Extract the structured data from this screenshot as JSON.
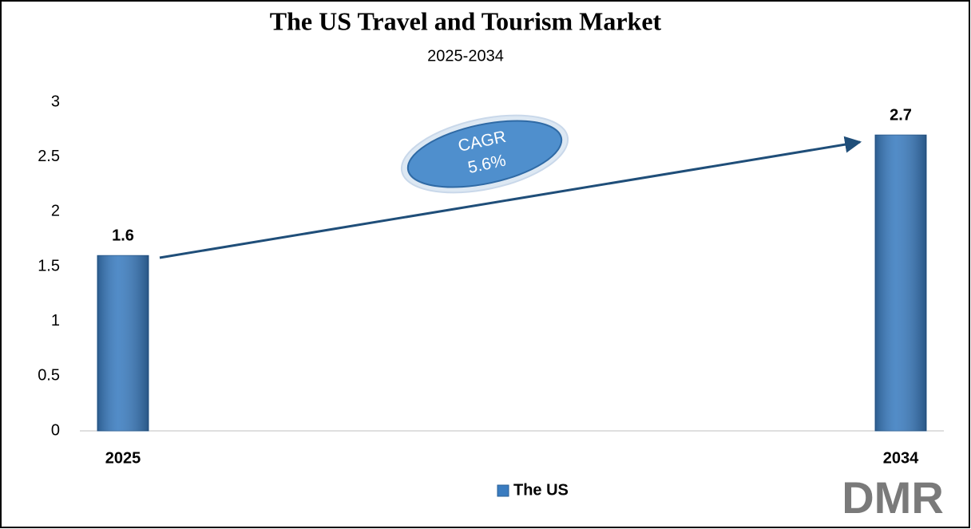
{
  "chart_data": {
    "type": "bar",
    "title": "The US Travel and Tourism Market",
    "subtitle": "2025-2034",
    "categories": [
      "2025",
      "2034"
    ],
    "series": [
      {
        "name": "The US",
        "color": "#3a7cc0",
        "values": [
          1.6,
          2.7
        ]
      }
    ],
    "ylim": [
      0,
      3
    ],
    "yticks": [
      0,
      0.5,
      1,
      1.5,
      2,
      2.5,
      3
    ],
    "grid": false,
    "annotation": {
      "label": "CAGR",
      "value": "5.6%"
    },
    "legend": "bottom",
    "logo": "DMR"
  }
}
